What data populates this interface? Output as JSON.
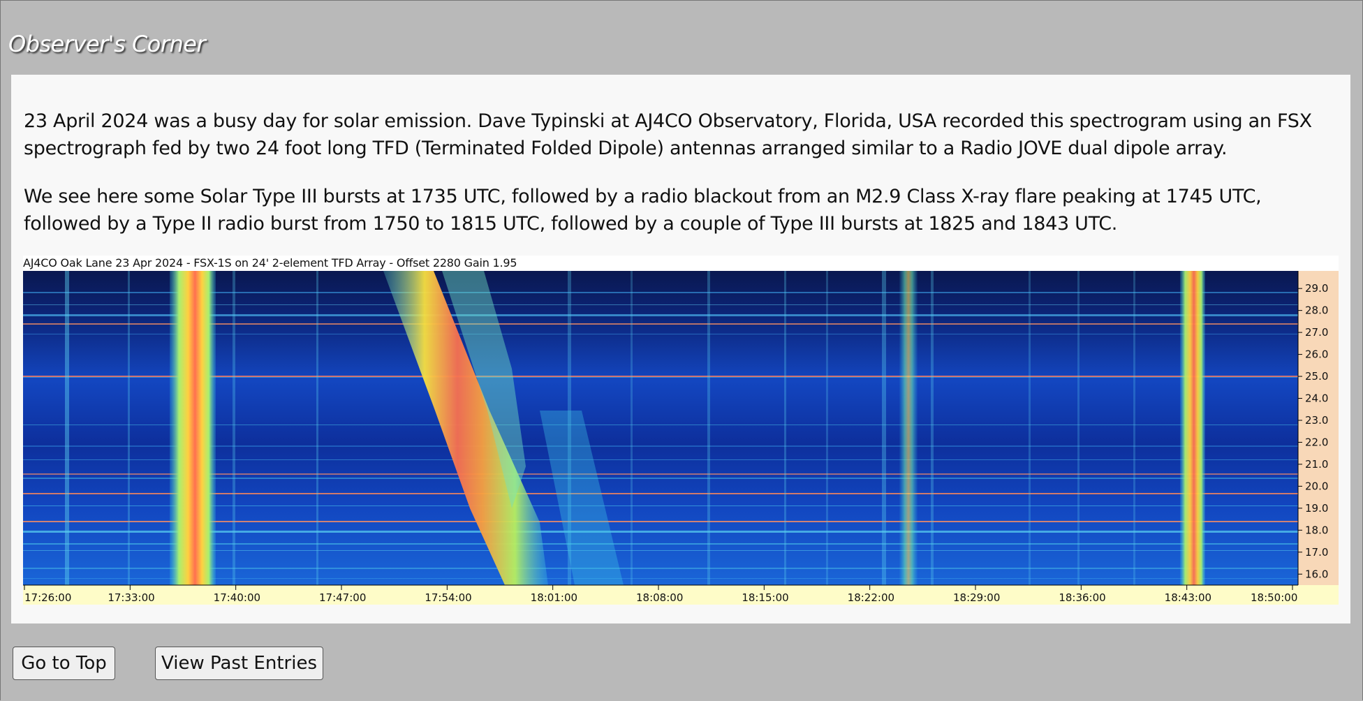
{
  "section": {
    "title": "Observer's Corner"
  },
  "article": {
    "paragraph1": "23 April 2024 was a busy day for solar emission. Dave Typinski at AJ4CO Observatory, Florida, USA recorded this spectrogram using an FSX spectrograph fed by two 24 foot long TFD (Terminated Folded Dipole) antennas arranged similar to a Radio JOVE dual dipole array.",
    "paragraph2": "We see here some Solar Type III bursts at 1735 UTC, followed by a radio blackout from an M2.9 Class X-ray flare peaking at 1745 UTC, followed by a Type II radio burst from 1750 to 1815 UTC, followed by a couple of Type III bursts at 1825 and 1843 UTC."
  },
  "spectrogram": {
    "header": "AJ4CO Oak Lane 23 Apr 2024 - FSX-1S on 24' 2-element TFD Array  -  Offset 2280  Gain 1.95",
    "time_labels": [
      "17:26:00",
      "17:33:00",
      "17:40:00",
      "17:47:00",
      "17:54:00",
      "18:01:00",
      "18:08:00",
      "18:15:00",
      "18:22:00",
      "18:29:00",
      "18:36:00",
      "18:43:00",
      "18:50:00"
    ],
    "freq_labels": [
      "29.0",
      "28.0",
      "27.0",
      "26.0",
      "25.0",
      "24.0",
      "23.0",
      "22.0",
      "21.0",
      "20.0",
      "19.0",
      "18.0",
      "17.0",
      "16.0"
    ],
    "colors": {
      "background": "#0f2f9a",
      "axis_band": "#fefcc8",
      "right_band": "#f8d8b8"
    }
  },
  "chart_data": {
    "type": "heatmap",
    "title": "AJ4CO Oak Lane 23 Apr 2024 - FSX-1S on 24' 2-element TFD Array  -  Offset 2280  Gain 1.95",
    "xlabel": "",
    "ylabel": "",
    "x_range": [
      "17:26:00",
      "18:50:00"
    ],
    "y_range": [
      15.5,
      29.8
    ],
    "x_ticks": [
      "17:26:00",
      "17:33:00",
      "17:40:00",
      "17:47:00",
      "17:54:00",
      "18:01:00",
      "18:08:00",
      "18:15:00",
      "18:22:00",
      "18:29:00",
      "18:36:00",
      "18:43:00",
      "18:50:00"
    ],
    "y_ticks": [
      29.0,
      28.0,
      27.0,
      26.0,
      25.0,
      24.0,
      23.0,
      22.0,
      21.0,
      20.0,
      19.0,
      18.0,
      17.0,
      16.0
    ]
  },
  "buttons": {
    "top": "Go to Top",
    "past": "View Past Entries"
  }
}
